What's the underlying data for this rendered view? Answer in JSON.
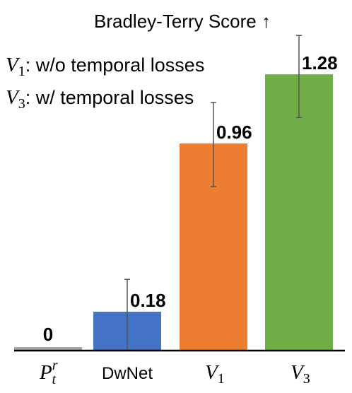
{
  "chart_data": {
    "type": "bar",
    "title": "Bradley-Terry Score ↑",
    "legend": [
      {
        "symbol": "V",
        "subscript": "1",
        "text": ": w/o temporal losses"
      },
      {
        "symbol": "V",
        "subscript": "3",
        "text": ": w/ temporal losses"
      }
    ],
    "categories": [
      {
        "symbol": "P",
        "subscript": "t",
        "superscript": "r",
        "text": ""
      },
      {
        "symbol": "",
        "subscript": "",
        "superscript": "",
        "text": "DwNet"
      },
      {
        "symbol": "V",
        "subscript": "1",
        "superscript": "",
        "text": ""
      },
      {
        "symbol": "V",
        "subscript": "3",
        "superscript": "",
        "text": ""
      }
    ],
    "values": [
      0,
      0.18,
      0.96,
      1.28
    ],
    "value_labels": [
      "0",
      "0.18",
      "0.96",
      "1.28"
    ],
    "error_low": [
      null,
      0.0,
      0.76,
      1.08
    ],
    "error_high": [
      null,
      0.33,
      1.15,
      1.46
    ],
    "colors": [
      "#a6a6a6",
      "#4472c4",
      "#ed7d31",
      "#70ad47"
    ],
    "ylim": [
      0,
      1.5
    ],
    "grid": false
  }
}
